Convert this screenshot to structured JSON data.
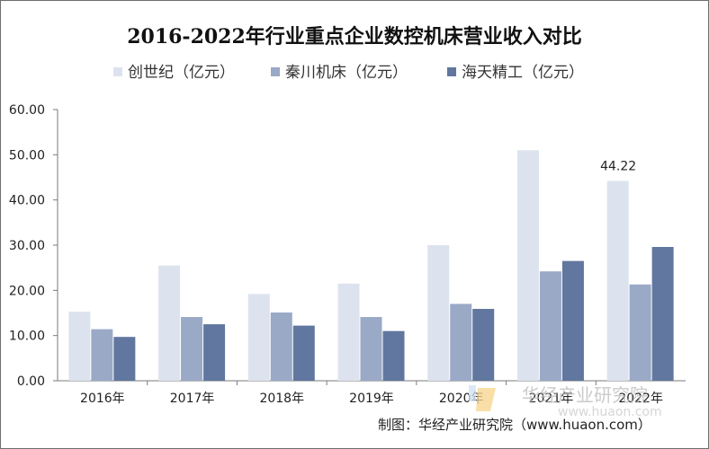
{
  "chart_data": {
    "type": "bar",
    "title": "2016-2022年行业重点企业数控机床营业收入对比",
    "categories": [
      "2016年",
      "2017年",
      "2018年",
      "2019年",
      "2020年",
      "2021年",
      "2022年"
    ],
    "series": [
      {
        "name": "创世纪（亿元）",
        "color": "#dde3ee",
        "values": [
          15.3,
          25.5,
          19.2,
          21.5,
          30.0,
          51.0,
          44.22
        ]
      },
      {
        "name": "秦川机床（亿元）",
        "color": "#9aa9c6",
        "values": [
          11.4,
          14.1,
          15.1,
          14.1,
          17.0,
          24.2,
          21.3
        ]
      },
      {
        "name": "海天精工（亿元）",
        "color": "#61779f",
        "values": [
          9.7,
          12.5,
          12.2,
          11.0,
          15.9,
          26.5,
          29.6
        ]
      }
    ],
    "ylim": [
      0,
      60
    ],
    "yticks": [
      "0.00",
      "10.00",
      "20.00",
      "30.00",
      "40.00",
      "50.00",
      "60.00"
    ],
    "annotations": [
      {
        "series": 0,
        "category": 6,
        "text": "44.22"
      }
    ],
    "grid": false,
    "legend_position": "top"
  },
  "source_text": "制图：华经产业研究院（www.huaon.com）",
  "watermark": {
    "text": "华经产业研究院",
    "url": "www.huaon.com"
  }
}
